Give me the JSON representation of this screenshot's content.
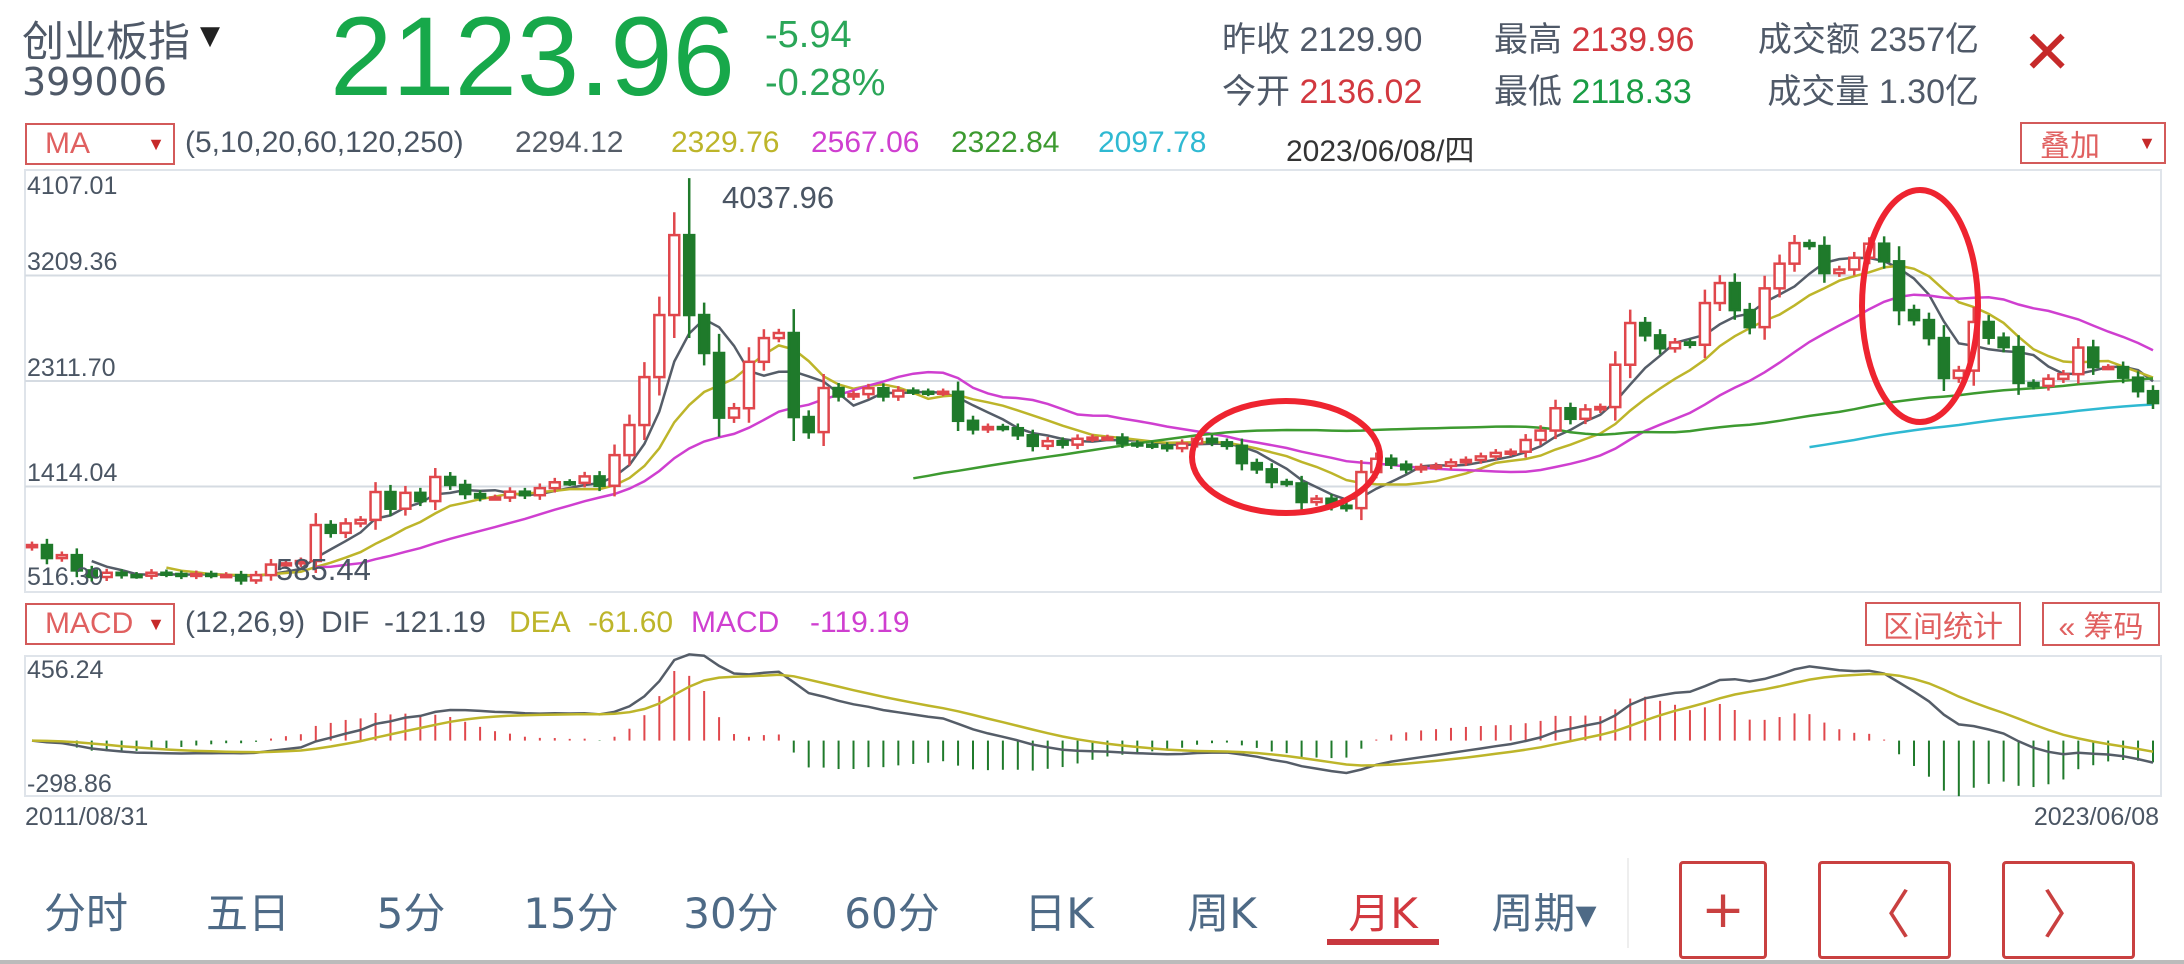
{
  "header": {
    "name": "创业板指",
    "code": "399006",
    "price": "2123.96",
    "change": "-5.94",
    "change_pct": "-0.28%",
    "stats": {
      "prev_close_label": "昨收",
      "prev_close": "2129.90",
      "open_label": "今开",
      "open": "2136.02",
      "high_label": "最高",
      "high": "2139.96",
      "low_label": "最低",
      "low": "2118.33",
      "amount_label": "成交额",
      "amount": "2357亿",
      "volume_label": "成交量",
      "volume": "1.30亿"
    },
    "close_icon": "close-x-icon"
  },
  "ma_bar": {
    "selector": "MA",
    "params": "(5,10,20,60,120,250)",
    "values": [
      "2294.12",
      "2329.76",
      "2567.06",
      "2322.84",
      "2097.78"
    ],
    "colors": [
      "#555d68",
      "#bdb52a",
      "#cf3fd0",
      "#3d9a30",
      "#2fb9d2"
    ],
    "date": "2023/06/08/四",
    "overlay_button": "叠加"
  },
  "macd_bar": {
    "selector": "MACD",
    "params": "(12,26,9)",
    "dif_label": "DIF",
    "dif": "-121.19",
    "dea_label": "DEA",
    "dea": "-61.60",
    "macd_label": "MACD",
    "macd": "-119.19",
    "range_stats_button": "区间统计",
    "chips_button": "« 筹码"
  },
  "chart_data": {
    "type": "candlestick",
    "period": "monthly",
    "y_ticks": [
      "4107.01",
      "3209.36",
      "2311.70",
      "1414.04",
      "516.39"
    ],
    "ylim": [
      516.39,
      4107.01
    ],
    "x_start": "2011/08/31",
    "x_end": "2023/06/08",
    "grid": true,
    "up_color": "#e0474c",
    "down_color": "#1f7a2b",
    "closes": [
      916,
      805,
      830,
      700,
      644,
      680,
      660,
      655,
      680,
      670,
      655,
      670,
      660,
      660,
      615,
      660,
      750,
      760,
      780,
      1086,
      1020,
      1100,
      1130,
      1367,
      1225,
      1360,
      1290,
      1495,
      1427,
      1350,
      1320,
      1320,
      1370,
      1340,
      1400,
      1450,
      1445,
      1500,
      1420,
      1681,
      1937,
      2345,
      2873,
      3553,
      2873,
      2550,
      2000,
      2080,
      2475,
      2677,
      2720,
      2005,
      1877,
      2252,
      2180,
      2200,
      2250,
      2180,
      2230,
      2220,
      2210,
      2220,
      1973,
      1900,
      1920,
      1910,
      1850,
      1760,
      1800,
      1770,
      1820,
      1830,
      1830,
      1780,
      1770,
      1760,
      1740,
      1780,
      1820,
      1790,
      1760,
      1613,
      1560,
      1452,
      1440,
      1282,
      1310,
      1250,
      1230,
      1537,
      1650,
      1600,
      1560,
      1580,
      1590,
      1620,
      1640,
      1670,
      1700,
      1710,
      1810,
      1890,
      2080,
      1990,
      2070,
      2090,
      2450,
      2805,
      2700,
      2590,
      2640,
      2620,
      2975,
      3145,
      2915,
      2770,
      3100,
      3310,
      3485,
      3460,
      3230,
      3260,
      3360,
      3480,
      3330,
      2915,
      2830,
      2677,
      2337,
      2400,
      2814,
      2680,
      2600,
      2295,
      2270,
      2330,
      2370,
      2596,
      2430,
      2430,
      2340,
      2225,
      2123.96
    ],
    "ma_periods": [
      5,
      10,
      20,
      60,
      120
    ],
    "annotated_high": {
      "label": "4037.96",
      "value": 4037.96,
      "candle": 44
    },
    "annotated_low": {
      "label": "585.44",
      "value": 585.44,
      "candle": 15
    },
    "macd": {
      "y_ticks": [
        "456.24",
        "-298.86"
      ],
      "ylim": [
        -298.86,
        456.24
      ],
      "dif_color": "#555d68",
      "dea_color": "#bdb52a"
    }
  },
  "tabs": [
    "分时",
    "五日",
    "5分",
    "15分",
    "30分",
    "60分",
    "日K",
    "周K",
    "月K",
    "周期▾"
  ],
  "active_tab": "月K",
  "buttons": {
    "zoom_in": "+",
    "prev": "〈",
    "next": "〉"
  }
}
